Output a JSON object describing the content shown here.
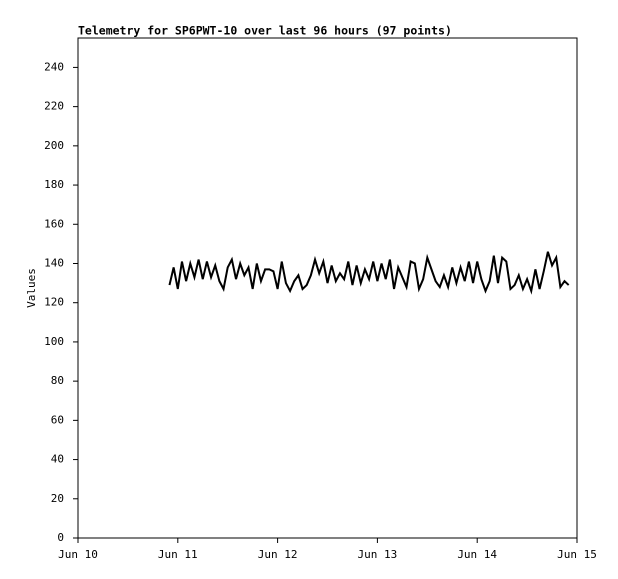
{
  "chart_data": {
    "type": "line",
    "title": "Telemetry for SP6PWT-10 over last 96 hours (97 points)",
    "y_label": "Values",
    "x": [
      22,
      23,
      24,
      25,
      26,
      27,
      28,
      29,
      30,
      31,
      32,
      33,
      34,
      35,
      36,
      37,
      38,
      39,
      40,
      41,
      42,
      43,
      44,
      45,
      46,
      47,
      48,
      49,
      50,
      51,
      52,
      53,
      54,
      55,
      56,
      57,
      58,
      59,
      60,
      61,
      62,
      63,
      64,
      65,
      66,
      67,
      68,
      69,
      70,
      71,
      72,
      73,
      74,
      75,
      76,
      77,
      78,
      79,
      80,
      81,
      82,
      83,
      84,
      85,
      86,
      87,
      88,
      89,
      90,
      91,
      92,
      93,
      94,
      95,
      96,
      97,
      98,
      99,
      100,
      101,
      102,
      103,
      104,
      105,
      106,
      107,
      108,
      109,
      110,
      111,
      112,
      113,
      114,
      115,
      116,
      117,
      118
    ],
    "series": [
      {
        "name": "Values",
        "color": "#000000",
        "values": [
          129,
          138,
          127,
          141,
          131,
          140,
          133,
          142,
          132,
          141,
          133,
          139,
          131,
          127,
          138,
          142,
          132,
          140,
          134,
          138,
          127,
          140,
          131,
          137,
          137,
          136,
          127,
          141,
          130,
          126,
          131,
          134,
          127,
          129,
          134,
          142,
          135,
          141,
          130,
          139,
          131,
          135,
          132,
          141,
          129,
          139,
          130,
          137,
          132,
          141,
          131,
          140,
          132,
          142,
          127,
          138,
          133,
          128,
          141,
          140,
          127,
          132,
          143,
          137,
          131,
          128,
          134,
          128,
          138,
          130,
          138,
          131,
          141,
          130,
          141,
          132,
          126,
          131,
          144,
          130,
          143,
          141,
          127,
          129,
          134,
          127,
          132,
          126,
          137,
          127,
          136,
          146,
          139,
          143,
          128,
          131,
          129
        ]
      }
    ],
    "xlim": [
      0,
      120
    ],
    "xticks": [
      {
        "value": 0,
        "label": "Jun 10"
      },
      {
        "value": 24,
        "label": "Jun 11"
      },
      {
        "value": 48,
        "label": "Jun 12"
      },
      {
        "value": 72,
        "label": "Jun 13"
      },
      {
        "value": 96,
        "label": "Jun 14"
      },
      {
        "value": 120,
        "label": "Jun 15"
      }
    ],
    "ylim": [
      0,
      255
    ],
    "yticks": [
      0,
      20,
      40,
      60,
      80,
      100,
      120,
      140,
      160,
      180,
      200,
      220,
      240
    ]
  }
}
